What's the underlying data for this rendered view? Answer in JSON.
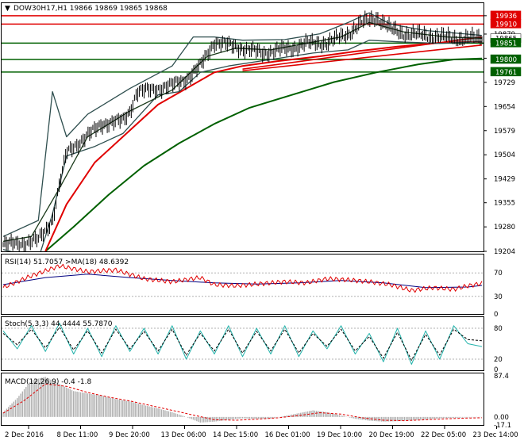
{
  "header": {
    "arrow": "▼",
    "title": "DOW30H17,H1  19866 19869 19865 19868"
  },
  "colors": {
    "background": "#ffffff",
    "frame": "#000000",
    "price": "#000000",
    "ema_fast": "#1a3a1a",
    "bollinger": "#2f4f4f",
    "ema_mid": "#e00000",
    "ema_slow": "#006000",
    "resistance": "#e00000",
    "support": "#006000",
    "rsi": "#e00000",
    "rsi_ma": "#000080",
    "stoch_main": "#20b2aa",
    "stoch_signal": "#000000",
    "macd_hist": "#b0b0b0",
    "macd_signal": "#e00000"
  },
  "chart_data": [
    {
      "type": "line",
      "title": "DOW30H17,H1  19866 19869 19865 19868",
      "ylim": [
        19204,
        19975
      ],
      "y_ticks": [
        "19204",
        "19280",
        "19355",
        "19429",
        "19504",
        "19579",
        "19654",
        "19729",
        "19804",
        "19879",
        "19936"
      ],
      "price_labels": [
        {
          "value": 19936,
          "text": "19936",
          "kind": "resistance"
        },
        {
          "value": 19910,
          "text": "19910",
          "kind": "resistance"
        },
        {
          "value": 19865,
          "text": "19865",
          "kind": "current"
        },
        {
          "value": 19851,
          "text": "19851",
          "kind": "support"
        },
        {
          "value": 19800,
          "text": "19800",
          "kind": "support"
        },
        {
          "value": 19761,
          "text": "19761",
          "kind": "support"
        }
      ],
      "x_labels": [
        "2 Dec 2016",
        "8 Dec 11:00",
        "9 Dec 20:00",
        "13 Dec 06:00",
        "14 Dec 15:00",
        "16 Dec 01:00",
        "19 Dec 10:00",
        "20 Dec 19:00",
        "22 Dec 05:00",
        "23 Dec 14:00"
      ],
      "price_path": [
        [
          0,
          19225
        ],
        [
          3,
          19230
        ],
        [
          5,
          19240
        ],
        [
          7,
          19300
        ],
        [
          8,
          19410
        ],
        [
          9,
          19510
        ],
        [
          10,
          19530
        ],
        [
          11,
          19545
        ],
        [
          14,
          19600
        ],
        [
          17,
          19610
        ],
        [
          18,
          19640
        ],
        [
          19,
          19700
        ],
        [
          21,
          19705
        ],
        [
          24,
          19720
        ],
        [
          26,
          19740
        ],
        [
          28,
          19780
        ],
        [
          30,
          19855
        ],
        [
          33,
          19840
        ],
        [
          35,
          19830
        ],
        [
          37,
          19820
        ],
        [
          39,
          19830
        ],
        [
          41,
          19835
        ],
        [
          43,
          19850
        ],
        [
          46,
          19852
        ],
        [
          49,
          19880
        ],
        [
          51,
          19915
        ],
        [
          53,
          19930
        ],
        [
          55,
          19895
        ],
        [
          57,
          19880
        ],
        [
          60,
          19875
        ],
        [
          62,
          19870
        ],
        [
          65,
          19865
        ],
        [
          67,
          19866
        ],
        [
          68,
          19868
        ]
      ],
      "ema_fast": [
        [
          0,
          19235
        ],
        [
          4,
          19250
        ],
        [
          8,
          19400
        ],
        [
          12,
          19560
        ],
        [
          18,
          19640
        ],
        [
          24,
          19705
        ],
        [
          29,
          19810
        ],
        [
          33,
          19835
        ],
        [
          38,
          19830
        ],
        [
          43,
          19850
        ],
        [
          48,
          19870
        ],
        [
          52,
          19915
        ],
        [
          57,
          19885
        ],
        [
          63,
          19870
        ],
        [
          68,
          19866
        ]
      ],
      "boll_upper": [
        [
          0,
          19250
        ],
        [
          5,
          19300
        ],
        [
          7,
          19700
        ],
        [
          9,
          19560
        ],
        [
          12,
          19630
        ],
        [
          18,
          19710
        ],
        [
          24,
          19780
        ],
        [
          27,
          19870
        ],
        [
          30,
          19870
        ],
        [
          34,
          19860
        ],
        [
          40,
          19862
        ],
        [
          45,
          19880
        ],
        [
          49,
          19915
        ],
        [
          52,
          19945
        ],
        [
          55,
          19910
        ],
        [
          60,
          19890
        ],
        [
          68,
          19875
        ]
      ],
      "boll_lower": [
        [
          0,
          19210
        ],
        [
          5,
          19180
        ],
        [
          7,
          19320
        ],
        [
          9,
          19500
        ],
        [
          13,
          19530
        ],
        [
          17,
          19570
        ],
        [
          22,
          19690
        ],
        [
          25,
          19700
        ],
        [
          28,
          19760
        ],
        [
          32,
          19780
        ],
        [
          38,
          19800
        ],
        [
          44,
          19820
        ],
        [
          49,
          19830
        ],
        [
          52,
          19860
        ],
        [
          56,
          19855
        ],
        [
          62,
          19850
        ],
        [
          68,
          19855
        ]
      ],
      "ema_mid": [
        [
          6,
          19204
        ],
        [
          9,
          19350
        ],
        [
          13,
          19480
        ],
        [
          18,
          19580
        ],
        [
          22,
          19660
        ],
        [
          26,
          19710
        ],
        [
          30,
          19760
        ],
        [
          34,
          19780
        ],
        [
          39,
          19795
        ],
        [
          45,
          19810
        ],
        [
          50,
          19825
        ],
        [
          56,
          19840
        ],
        [
          62,
          19852
        ],
        [
          68,
          19855
        ]
      ],
      "ema_slow": [
        [
          6,
          19204
        ],
        [
          10,
          19280
        ],
        [
          15,
          19380
        ],
        [
          20,
          19470
        ],
        [
          25,
          19540
        ],
        [
          30,
          19600
        ],
        [
          35,
          19650
        ],
        [
          41,
          19690
        ],
        [
          47,
          19730
        ],
        [
          53,
          19760
        ],
        [
          59,
          19785
        ],
        [
          64,
          19800
        ],
        [
          68,
          19803
        ]
      ],
      "resistance_lines": [
        19936,
        19910
      ],
      "support_lines": [
        19851,
        19800,
        19761
      ],
      "trend_lines": [
        [
          [
            34,
            19770
          ],
          [
            68,
            19870
          ]
        ],
        [
          [
            34,
            19765
          ],
          [
            68,
            19845
          ]
        ]
      ]
    },
    {
      "type": "line",
      "title": "RSI(14) 51.7057  >MA(18) 48.6392",
      "ylim": [
        0,
        100
      ],
      "y_ticks": [
        "70",
        "30",
        "0"
      ],
      "rsi": [
        [
          0,
          45
        ],
        [
          4,
          65
        ],
        [
          8,
          82
        ],
        [
          12,
          72
        ],
        [
          16,
          75
        ],
        [
          20,
          60
        ],
        [
          24,
          55
        ],
        [
          28,
          62
        ],
        [
          30,
          50
        ],
        [
          33,
          48
        ],
        [
          37,
          52
        ],
        [
          40,
          55
        ],
        [
          43,
          53
        ],
        [
          46,
          60
        ],
        [
          49,
          58
        ],
        [
          52,
          55
        ],
        [
          55,
          50
        ],
        [
          58,
          40
        ],
        [
          61,
          45
        ],
        [
          64,
          42
        ],
        [
          66,
          48
        ],
        [
          68,
          52
        ]
      ],
      "rsi_ma": [
        [
          0,
          50
        ],
        [
          6,
          62
        ],
        [
          12,
          68
        ],
        [
          18,
          62
        ],
        [
          24,
          57
        ],
        [
          30,
          53
        ],
        [
          36,
          51
        ],
        [
          42,
          53
        ],
        [
          48,
          57
        ],
        [
          54,
          53
        ],
        [
          60,
          45
        ],
        [
          66,
          46
        ],
        [
          68,
          48.6
        ]
      ]
    },
    {
      "type": "line",
      "title": "Stoch(5,3,3) 44.4444 55.7870",
      "ylim": [
        0,
        100
      ],
      "y_ticks": [
        "80",
        "20",
        "0"
      ],
      "stoch_main": [
        [
          0,
          75
        ],
        [
          2,
          40
        ],
        [
          4,
          85
        ],
        [
          6,
          35
        ],
        [
          8,
          90
        ],
        [
          10,
          30
        ],
        [
          12,
          80
        ],
        [
          14,
          25
        ],
        [
          16,
          85
        ],
        [
          18,
          35
        ],
        [
          20,
          80
        ],
        [
          22,
          30
        ],
        [
          24,
          85
        ],
        [
          26,
          20
        ],
        [
          28,
          75
        ],
        [
          30,
          30
        ],
        [
          32,
          85
        ],
        [
          34,
          25
        ],
        [
          36,
          80
        ],
        [
          38,
          30
        ],
        [
          40,
          85
        ],
        [
          42,
          25
        ],
        [
          44,
          75
        ],
        [
          46,
          40
        ],
        [
          48,
          85
        ],
        [
          50,
          30
        ],
        [
          52,
          70
        ],
        [
          54,
          15
        ],
        [
          56,
          80
        ],
        [
          58,
          10
        ],
        [
          60,
          75
        ],
        [
          62,
          20
        ],
        [
          64,
          85
        ],
        [
          66,
          50
        ],
        [
          68,
          44.4
        ]
      ],
      "stoch_signal": [
        [
          0,
          70
        ],
        [
          2,
          48
        ],
        [
          4,
          78
        ],
        [
          6,
          42
        ],
        [
          8,
          82
        ],
        [
          10,
          38
        ],
        [
          12,
          75
        ],
        [
          14,
          32
        ],
        [
          16,
          78
        ],
        [
          18,
          40
        ],
        [
          20,
          74
        ],
        [
          22,
          36
        ],
        [
          24,
          78
        ],
        [
          26,
          28
        ],
        [
          28,
          70
        ],
        [
          30,
          36
        ],
        [
          32,
          78
        ],
        [
          34,
          32
        ],
        [
          36,
          74
        ],
        [
          38,
          36
        ],
        [
          40,
          78
        ],
        [
          42,
          32
        ],
        [
          44,
          70
        ],
        [
          46,
          45
        ],
        [
          48,
          78
        ],
        [
          50,
          36
        ],
        [
          52,
          64
        ],
        [
          54,
          22
        ],
        [
          56,
          72
        ],
        [
          58,
          18
        ],
        [
          60,
          68
        ],
        [
          62,
          28
        ],
        [
          64,
          78
        ],
        [
          66,
          58
        ],
        [
          68,
          55.8
        ]
      ]
    },
    {
      "type": "bar",
      "title": "MACD(12,26,9) -0.4 -1.8",
      "ylim": [
        -17.1,
        87.4
      ],
      "y_ticks": [
        "87.4",
        "0.00",
        "-17.1"
      ],
      "macd": [
        [
          0,
          10
        ],
        [
          2,
          40
        ],
        [
          4,
          78
        ],
        [
          6,
          85
        ],
        [
          8,
          70
        ],
        [
          10,
          55
        ],
        [
          12,
          50
        ],
        [
          14,
          45
        ],
        [
          16,
          38
        ],
        [
          18,
          33
        ],
        [
          20,
          25
        ],
        [
          22,
          18
        ],
        [
          24,
          10
        ],
        [
          26,
          0
        ],
        [
          28,
          -12
        ],
        [
          30,
          -10
        ],
        [
          32,
          -6
        ],
        [
          34,
          -3
        ],
        [
          36,
          -4
        ],
        [
          38,
          -3
        ],
        [
          40,
          2
        ],
        [
          42,
          8
        ],
        [
          44,
          14
        ],
        [
          46,
          10
        ],
        [
          48,
          3
        ],
        [
          50,
          -4
        ],
        [
          52,
          -8
        ],
        [
          54,
          -10
        ],
        [
          56,
          -9
        ],
        [
          58,
          -7
        ],
        [
          60,
          -5
        ],
        [
          62,
          -3
        ],
        [
          64,
          -2
        ],
        [
          66,
          -1
        ],
        [
          68,
          -0.4
        ]
      ],
      "signal": [
        [
          0,
          8
        ],
        [
          3,
          35
        ],
        [
          6,
          70
        ],
        [
          9,
          65
        ],
        [
          12,
          52
        ],
        [
          15,
          42
        ],
        [
          18,
          34
        ],
        [
          21,
          24
        ],
        [
          24,
          14
        ],
        [
          27,
          4
        ],
        [
          30,
          -6
        ],
        [
          33,
          -7
        ],
        [
          36,
          -5
        ],
        [
          39,
          -2
        ],
        [
          42,
          3
        ],
        [
          45,
          9
        ],
        [
          48,
          6
        ],
        [
          51,
          -2
        ],
        [
          54,
          -7
        ],
        [
          57,
          -8
        ],
        [
          60,
          -6
        ],
        [
          63,
          -4
        ],
        [
          66,
          -2.5
        ],
        [
          68,
          -1.8
        ]
      ]
    }
  ]
}
